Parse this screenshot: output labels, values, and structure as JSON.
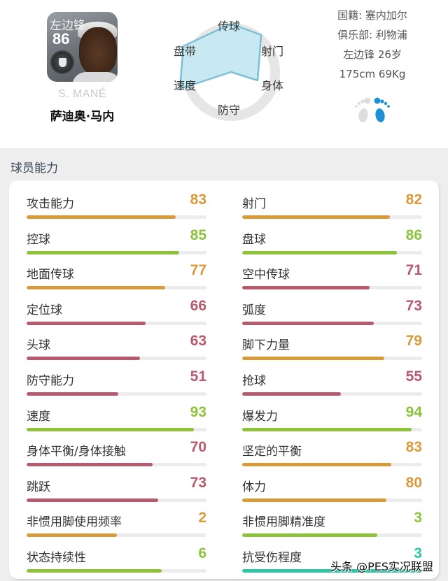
{
  "player": {
    "position_badge": "左边锋",
    "overall": "86",
    "name_en": "S. MANÉ",
    "name_cn": "萨迪奥·马内"
  },
  "radar": {
    "labels": {
      "passing": "传球",
      "shooting": "射门",
      "physical": "身体",
      "defense": "防守",
      "speed": "速度",
      "dribbling": "盘带"
    },
    "fill_color": "#c9e9f2",
    "stroke_color": "#7cc0d8",
    "ring_color": "#e6e6e6"
  },
  "info": {
    "nationality": "国籍: 塞内加尔",
    "club": "俱乐部: 利物浦",
    "position_age": "左边锋 26岁",
    "height_weight": "175cm 69Kg",
    "preferred_foot": "right",
    "foot_active_color": "#1f8fd6",
    "foot_inactive_color": "#dddddd"
  },
  "section": {
    "title": "球员能力"
  },
  "stats": {
    "left": [
      {
        "label": "攻击能力",
        "value": "83",
        "pct": 83,
        "color": "orange"
      },
      {
        "label": "控球",
        "value": "85",
        "pct": 85,
        "color": "green"
      },
      {
        "label": "地面传球",
        "value": "77",
        "pct": 77,
        "color": "orange"
      },
      {
        "label": "定位球",
        "value": "66",
        "pct": 66,
        "color": "red"
      },
      {
        "label": "头球",
        "value": "63",
        "pct": 63,
        "color": "red"
      },
      {
        "label": "防守能力",
        "value": "51",
        "pct": 51,
        "color": "red"
      },
      {
        "label": "速度",
        "value": "93",
        "pct": 93,
        "color": "green"
      },
      {
        "label": "身体平衡/身体接触",
        "value": "70",
        "pct": 70,
        "color": "red"
      },
      {
        "label": "跳跃",
        "value": "73",
        "pct": 73,
        "color": "red"
      },
      {
        "label": "非惯用脚使用频率",
        "value": "2",
        "pct": 50,
        "color": "orange"
      },
      {
        "label": "状态持续性",
        "value": "6",
        "pct": 75,
        "color": "green"
      }
    ],
    "right": [
      {
        "label": "射门",
        "value": "82",
        "pct": 82,
        "color": "orange"
      },
      {
        "label": "盘球",
        "value": "86",
        "pct": 86,
        "color": "green"
      },
      {
        "label": "空中传球",
        "value": "71",
        "pct": 71,
        "color": "red"
      },
      {
        "label": "弧度",
        "value": "73",
        "pct": 73,
        "color": "red"
      },
      {
        "label": "脚下力量",
        "value": "79",
        "pct": 79,
        "color": "orange"
      },
      {
        "label": "抢球",
        "value": "55",
        "pct": 55,
        "color": "red"
      },
      {
        "label": "爆发力",
        "value": "94",
        "pct": 94,
        "color": "green"
      },
      {
        "label": "坚定的平衡",
        "value": "83",
        "pct": 83,
        "color": "orange"
      },
      {
        "label": "体力",
        "value": "80",
        "pct": 80,
        "color": "orange"
      },
      {
        "label": "非惯用脚精准度",
        "value": "3",
        "pct": 75,
        "color": "green"
      },
      {
        "label": "抗受伤程度",
        "value": "3",
        "pct": 100,
        "color": "teal"
      }
    ]
  },
  "colors": {
    "orange": "#d99a3a",
    "green": "#8dc33a",
    "red": "#b85a6e",
    "teal": "#2fc4a6",
    "track": "#ececec"
  },
  "watermark": "头条 @PES实况联盟"
}
